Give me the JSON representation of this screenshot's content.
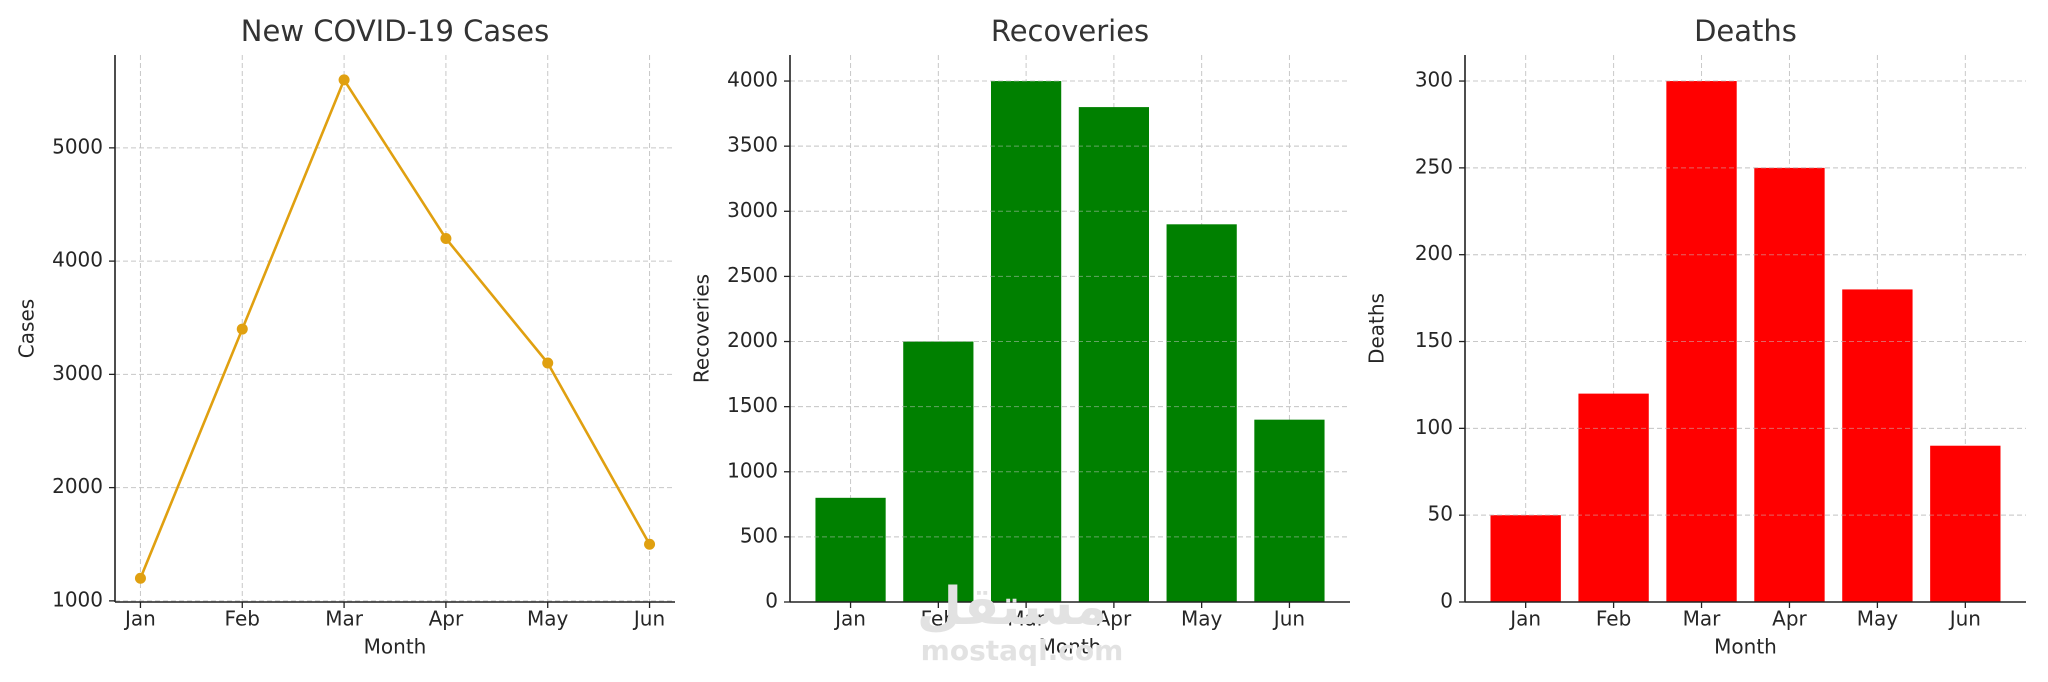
{
  "chart_data": [
    {
      "type": "line",
      "title": "New COVID-19 Cases",
      "x_label": "Month",
      "y_label": "Cases",
      "categories": [
        "Jan",
        "Feb",
        "Mar",
        "Apr",
        "May",
        "Jun"
      ],
      "values": [
        1200,
        3400,
        5600,
        4200,
        3100,
        1500
      ],
      "color": "#e0a010",
      "ylim": [
        990,
        5820
      ],
      "yticks": [
        1000,
        2000,
        3000,
        4000,
        5000
      ],
      "grid": true
    },
    {
      "type": "bar",
      "title": "Recoveries",
      "x_label": "Month",
      "y_label": "Recoveries",
      "categories": [
        "Jan",
        "Feb",
        "Mar",
        "Apr",
        "May",
        "Jun"
      ],
      "values": [
        800,
        2000,
        4000,
        3800,
        2900,
        1400
      ],
      "color": "#008000",
      "ylim": [
        0,
        4200
      ],
      "yticks": [
        0,
        500,
        1000,
        1500,
        2000,
        2500,
        3000,
        3500,
        4000
      ],
      "grid": true
    },
    {
      "type": "bar",
      "title": "Deaths",
      "x_label": "Month",
      "y_label": "Deaths",
      "categories": [
        "Jan",
        "Feb",
        "Mar",
        "Apr",
        "May",
        "Jun"
      ],
      "values": [
        50,
        120,
        300,
        250,
        180,
        90
      ],
      "color": "#ff0000",
      "ylim": [
        0,
        315
      ],
      "yticks": [
        0,
        50,
        100,
        150,
        200,
        250,
        300
      ],
      "grid": true
    }
  ],
  "watermark": {
    "arabic": "مستقل",
    "text": "mostaql.com"
  }
}
